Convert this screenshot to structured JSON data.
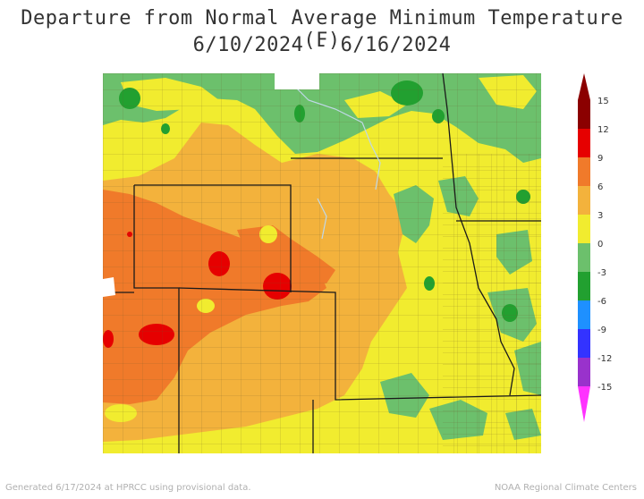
{
  "title": {
    "line1": "Departure from Normal Average Minimum Temperature (F)",
    "line2": "6/10/2024 - 6/16/2024"
  },
  "legend": {
    "ticks": [
      "15",
      "12",
      "9",
      "6",
      "3",
      "0",
      "-3",
      "-6",
      "-9",
      "-12",
      "-15"
    ],
    "colors": {
      "above_12": "#8b0000",
      "9_to_12": "#e60000",
      "6_to_9": "#f07a2a",
      "3_to_6": "#f3b23c",
      "0_to_3": "#f1ec2f",
      "-3_to_0": "#6cc06c",
      "-6_to_-3": "#22a030",
      "-9_to_-6": "#1e90ff",
      "-12_to_-9": "#3333ff",
      "-15_to_-12": "#9932cc",
      "below_-15": "#ff33ff"
    }
  },
  "footer": {
    "left": "Generated 6/17/2024 at HPRCC using provisional data.",
    "right": "NOAA Regional Climate Centers"
  }
}
